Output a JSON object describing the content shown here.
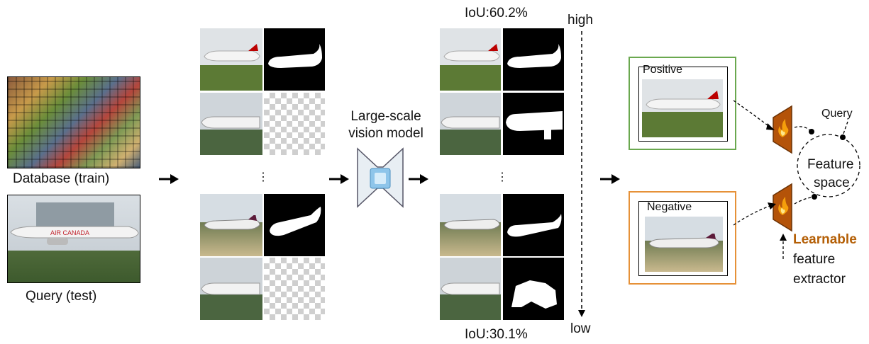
{
  "left": {
    "database_label": "Database (train)",
    "query_label": "Query (test)"
  },
  "model": {
    "label_line1": "Large-scale",
    "label_line2": "vision model"
  },
  "ranking": {
    "iou_top": "IoU:60.2%",
    "iou_bottom": "IoU:30.1%",
    "high_label": "high",
    "low_label": "low",
    "ellipsis": "⋮"
  },
  "right": {
    "positive_label": "Positive",
    "negative_label": "Negative",
    "query_label": "Query",
    "feature_line1": "Feature",
    "feature_line2": "space",
    "learnable_label": "Learnable",
    "extractor_line1": "feature",
    "extractor_line2": "extractor"
  },
  "colors": {
    "positive_border": "#6aa84f",
    "negative_border": "#e69138",
    "learnable_text": "#b45f06",
    "extractor_fill": "#b45309",
    "fire": "#f59e0b",
    "model_icon": "#8ec5ea"
  },
  "icons": [
    "right-arrow-icon",
    "vision-model-icon",
    "fire-icon",
    "airplane-icon"
  ]
}
